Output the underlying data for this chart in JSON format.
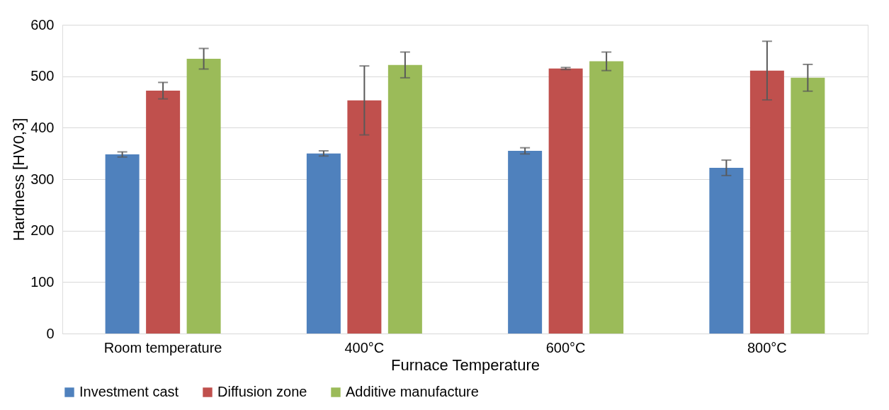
{
  "chart_data": {
    "type": "bar",
    "xlabel": "Furnace Temperature",
    "ylabel": "Hardness [HV0,3]",
    "categories": [
      "Room temperature",
      "400°C",
      "600°C",
      "800°C"
    ],
    "series": [
      {
        "name": "Investment cast",
        "color": "#4f81bd",
        "values": [
          348,
          350,
          355,
          322
        ],
        "errors": [
          5,
          5,
          6,
          15
        ]
      },
      {
        "name": "Diffusion zone",
        "color": "#c0504d",
        "values": [
          472,
          453,
          515,
          511
        ],
        "errors": [
          16,
          67,
          2,
          57
        ]
      },
      {
        "name": "Additive manufacture",
        "color": "#9bbb59",
        "values": [
          534,
          522,
          529,
          497
        ],
        "errors": [
          20,
          25,
          18,
          26
        ]
      }
    ],
    "ylim": [
      0,
      600
    ],
    "yticks": [
      0,
      100,
      200,
      300,
      400,
      500,
      600
    ],
    "grid": "y",
    "legend": "bottom"
  }
}
